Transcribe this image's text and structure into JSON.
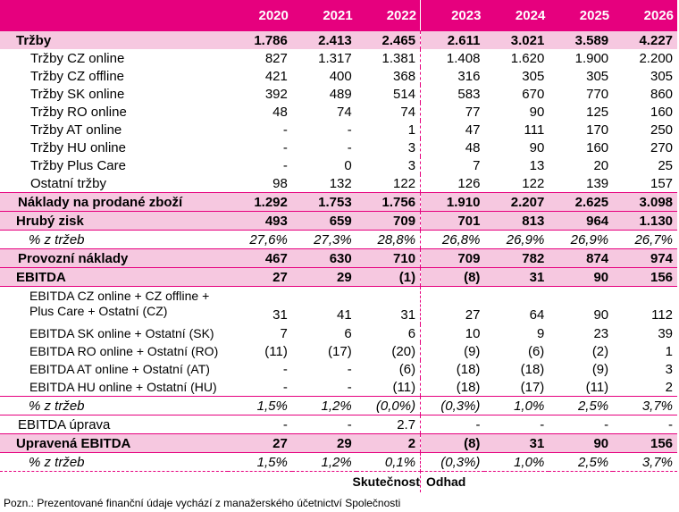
{
  "years": [
    "2020",
    "2021",
    "2022",
    "2023",
    "2024",
    "2025",
    "2026"
  ],
  "rows": [
    {
      "label": "Tržby",
      "values": [
        "1.786",
        "2.413",
        "2.465",
        "2.611",
        "3.021",
        "3.589",
        "4.227"
      ]
    },
    {
      "label": "Tržby CZ online",
      "values": [
        "827",
        "1.317",
        "1.381",
        "1.408",
        "1.620",
        "1.900",
        "2.200"
      ]
    },
    {
      "label": "Tržby CZ offline",
      "values": [
        "421",
        "400",
        "368",
        "316",
        "305",
        "305",
        "305"
      ]
    },
    {
      "label": "Tržby SK online",
      "values": [
        "392",
        "489",
        "514",
        "583",
        "670",
        "770",
        "860"
      ]
    },
    {
      "label": "Tržby RO online",
      "values": [
        "48",
        "74",
        "74",
        "77",
        "90",
        "125",
        "160"
      ]
    },
    {
      "label": "Tržby AT online",
      "values": [
        "-",
        "-",
        "1",
        "47",
        "111",
        "170",
        "250"
      ]
    },
    {
      "label": "Tržby HU online",
      "values": [
        "-",
        "-",
        "3",
        "48",
        "90",
        "160",
        "270"
      ]
    },
    {
      "label": "Tržby Plus Care",
      "values": [
        "-",
        "0",
        "3",
        "7",
        "13",
        "20",
        "25"
      ]
    },
    {
      "label": "Ostatní tržby",
      "values": [
        "98",
        "132",
        "122",
        "126",
        "122",
        "139",
        "157"
      ]
    },
    {
      "label": "Náklady na prodané zboží",
      "values": [
        "1.292",
        "1.753",
        "1.756",
        "1.910",
        "2.207",
        "2.625",
        "3.098"
      ]
    },
    {
      "label": "Hrubý zisk",
      "values": [
        "493",
        "659",
        "709",
        "701",
        "813",
        "964",
        "1.130"
      ]
    },
    {
      "label": "% z tržeb",
      "values": [
        "27,6%",
        "27,3%",
        "28,8%",
        "26,8%",
        "26,9%",
        "26,9%",
        "26,7%"
      ]
    },
    {
      "label": "Provozní náklady",
      "values": [
        "467",
        "630",
        "710",
        "709",
        "782",
        "874",
        "974"
      ]
    },
    {
      "label": "EBITDA",
      "values": [
        "27",
        "29",
        "(1)",
        "(8)",
        "31",
        "90",
        "156"
      ]
    },
    {
      "label": "EBITDA CZ online + CZ offline + Plus Care + Ostatní (CZ)",
      "values": [
        "31",
        "41",
        "31",
        "27",
        "64",
        "90",
        "112"
      ]
    },
    {
      "label": "EBITDA SK online + Ostatní (SK)",
      "values": [
        "7",
        "6",
        "6",
        "10",
        "9",
        "23",
        "39"
      ]
    },
    {
      "label": "EBITDA RO online + Ostatní (RO)",
      "values": [
        "(11)",
        "(17)",
        "(20)",
        "(9)",
        "(6)",
        "(2)",
        "1"
      ]
    },
    {
      "label": "EBITDA AT online + Ostatní (AT)",
      "values": [
        "-",
        "-",
        "(6)",
        "(18)",
        "(18)",
        "(9)",
        "3"
      ]
    },
    {
      "label": "EBITDA HU online + Ostatní (HU)",
      "values": [
        "-",
        "-",
        "(11)",
        "(18)",
        "(17)",
        "(11)",
        "2"
      ]
    },
    {
      "label": "% z tržeb",
      "values": [
        "1,5%",
        "1,2%",
        "(0,0%)",
        "(0,3%)",
        "1,0%",
        "2,5%",
        "3,7%"
      ]
    },
    {
      "label": "EBITDA úprava",
      "values": [
        "-",
        "-",
        "2.7",
        "-",
        "-",
        "-",
        "-"
      ]
    },
    {
      "label": "Upravená EBITDA",
      "values": [
        "27",
        "29",
        "2",
        "(8)",
        "31",
        "90",
        "156"
      ]
    },
    {
      "label": "% z tržeb",
      "values": [
        "1,5%",
        "1,2%",
        "0,1%",
        "(0,3%)",
        "1,0%",
        "2,5%",
        "3,7%"
      ]
    }
  ],
  "footer": {
    "actual": "Skutečnost",
    "estimate": "Odhad"
  },
  "note": "Pozn.: Prezentované finanční údaje vychází z manažerského účetnictví Společnosti",
  "colors": {
    "accent": "#e6007e",
    "highlight": "#f6c8e0"
  }
}
